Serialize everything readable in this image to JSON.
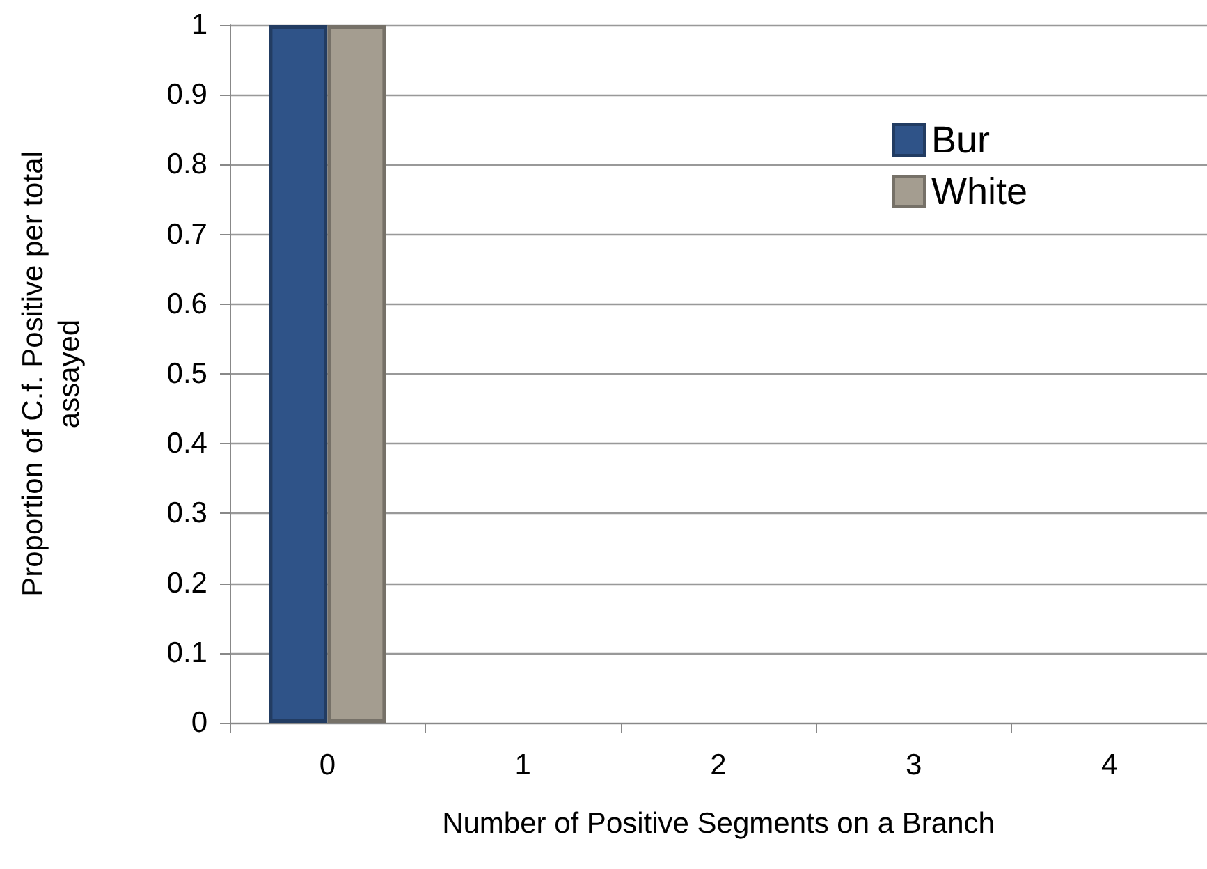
{
  "chart_data": {
    "type": "bar",
    "xlabel": "Number of Positive Segments on a Branch",
    "ylabel": "Proportion of C.f. Positive per total assayed",
    "categories": [
      "0",
      "1",
      "2",
      "3",
      "4"
    ],
    "series": [
      {
        "name": "Bur",
        "color": "#2f5388",
        "values": [
          1,
          0,
          0,
          0,
          0
        ]
      },
      {
        "name": "White",
        "color": "#a49d90",
        "values": [
          1,
          0,
          0,
          0,
          0
        ]
      }
    ],
    "ylim": [
      0,
      1
    ],
    "yticks": [
      0,
      0.1,
      0.2,
      0.3,
      0.4,
      0.5,
      0.6,
      0.7,
      0.8,
      0.9,
      1
    ],
    "grid": "y",
    "legend": "top right"
  }
}
